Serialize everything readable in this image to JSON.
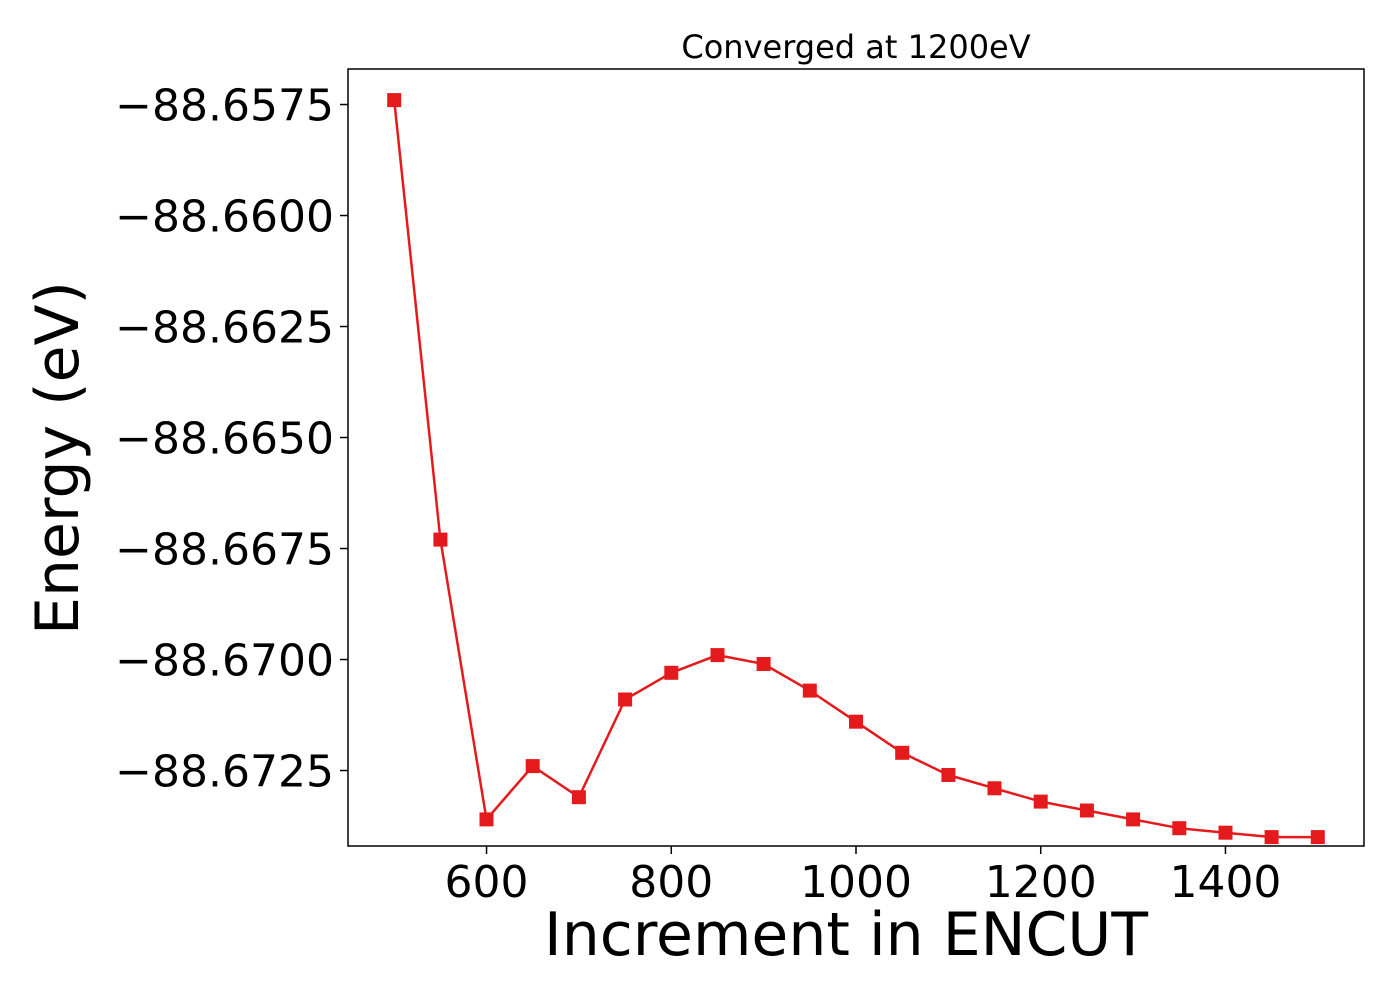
{
  "chart_data": {
    "type": "line",
    "title": "Converged at 1200eV",
    "xlabel": "Increment in ENCUT",
    "ylabel": "Energy (eV)",
    "xlim": [
      450,
      1550
    ],
    "ylim": [
      -88.6742,
      -88.6567
    ],
    "x_ticks": [
      600,
      800,
      1000,
      1200,
      1400
    ],
    "x_tick_labels": [
      "600",
      "800",
      "1000",
      "1200",
      "1400"
    ],
    "y_ticks": [
      -88.6575,
      -88.66,
      -88.6625,
      -88.665,
      -88.6675,
      -88.67,
      -88.6725
    ],
    "y_tick_labels": [
      "−88.6575",
      "−88.6600",
      "−88.6625",
      "−88.6650",
      "−88.6675",
      "−88.6700",
      "−88.6725"
    ],
    "grid": false,
    "marker": "square",
    "color": "#e41a1c",
    "x": [
      500,
      550,
      600,
      650,
      700,
      750,
      800,
      850,
      900,
      950,
      1000,
      1050,
      1100,
      1150,
      1200,
      1250,
      1300,
      1350,
      1400,
      1450,
      1500
    ],
    "series": [
      {
        "values": [
          -88.6574,
          -88.6673,
          -88.6736,
          -88.6724,
          -88.6731,
          -88.6709,
          -88.6703,
          -88.6699,
          -88.6701,
          -88.6707,
          -88.6714,
          -88.6721,
          -88.6726,
          -88.6729,
          -88.6732,
          -88.6734,
          -88.6736,
          -88.6738,
          -88.6739,
          -88.674,
          -88.674
        ]
      }
    ]
  }
}
